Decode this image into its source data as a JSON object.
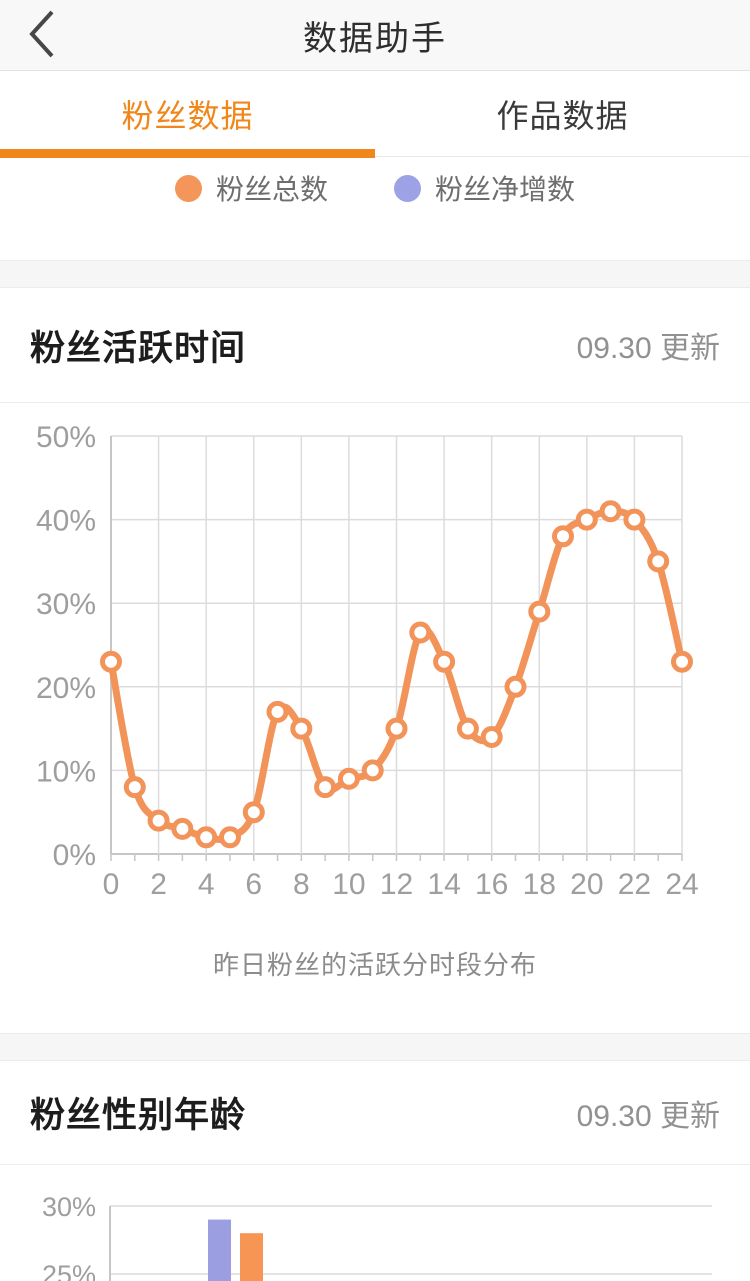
{
  "header": {
    "title": "数据助手"
  },
  "tabs": {
    "fans": {
      "label": "粉丝数据",
      "active": true
    },
    "works": {
      "label": "作品数据",
      "active": false
    }
  },
  "legend": {
    "total": {
      "label": "粉丝总数",
      "color": "#F4965A"
    },
    "net": {
      "label": "粉丝净增数",
      "color": "#9DA1E5"
    }
  },
  "sections": {
    "activity": {
      "title": "粉丝活跃时间",
      "updated": "09.30 更新",
      "caption": "昨日粉丝的活跃分时段分布"
    },
    "gender_age": {
      "title": "粉丝性别年龄",
      "updated": "09.30 更新"
    }
  },
  "colors": {
    "accent": "#F0871A",
    "line": "#F2935A",
    "purple": "#9B9FE2",
    "bar_orange": "#F79654",
    "grid": "#dcdcdc",
    "axis": "#c6c6c6",
    "tick_text": "#9e9e9e"
  },
  "chart_data": [
    {
      "type": "line",
      "title": "粉丝活跃时间",
      "caption": "昨日粉丝的活跃分时段分布",
      "x": [
        0,
        1,
        2,
        3,
        4,
        5,
        6,
        7,
        8,
        9,
        10,
        11,
        12,
        13,
        14,
        15,
        16,
        17,
        18,
        19,
        20,
        21,
        22,
        23,
        24
      ],
      "values": [
        23,
        8,
        4,
        3,
        2,
        2,
        5,
        17,
        15,
        8,
        9,
        10,
        15,
        26.5,
        23,
        15,
        14,
        20,
        29,
        38,
        40,
        41,
        40,
        35,
        23
      ],
      "xticks": [
        0,
        2,
        4,
        6,
        8,
        10,
        12,
        14,
        16,
        18,
        20,
        22,
        24
      ],
      "yticks": [
        0,
        10,
        20,
        30,
        40,
        50
      ],
      "ytick_suffix": "%",
      "ylim": [
        0,
        50
      ],
      "xlim": [
        0,
        24
      ],
      "grid": true,
      "marker": "hollow-circle",
      "line_color": "#F2935A"
    },
    {
      "type": "bar",
      "title": "粉丝性别年龄",
      "visible_yticks": [
        30,
        25
      ],
      "ytick_suffix": "%",
      "series": [
        {
          "name": "bar-purple",
          "color": "#9B9FE2",
          "values": [
            29
          ]
        },
        {
          "name": "bar-orange",
          "color": "#F79654",
          "values": [
            28
          ]
        }
      ]
    }
  ]
}
